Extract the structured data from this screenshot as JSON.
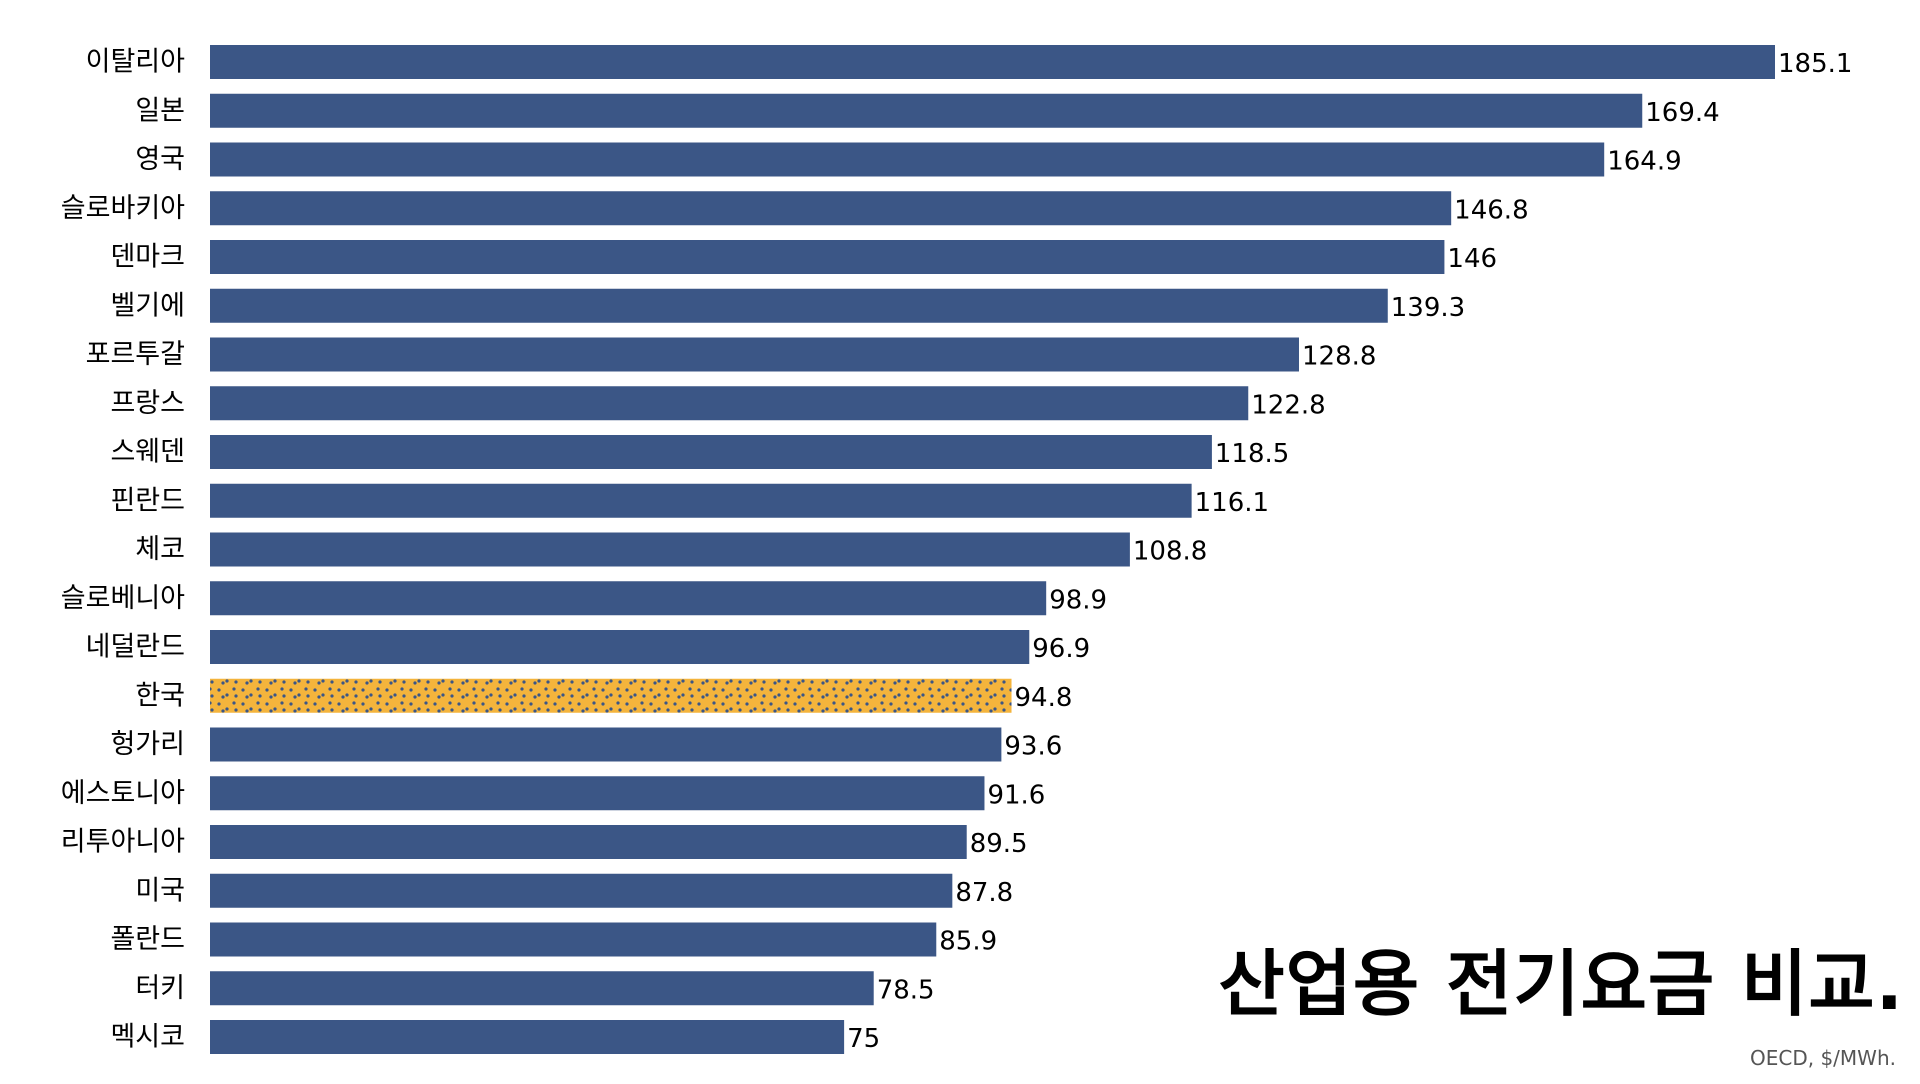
{
  "chart_data": {
    "type": "bar",
    "orientation": "horizontal",
    "title": "산업용 전기요금 비교.",
    "source": "OECD, $/MWh.",
    "categories": [
      "이탈리아",
      "일본",
      "영국",
      "슬로바키아",
      "덴마크",
      "벨기에",
      "포르투갈",
      "프랑스",
      "스웨덴",
      "핀란드",
      "체코",
      "슬로베니아",
      "네덜란드",
      "한국",
      "헝가리",
      "에스토니아",
      "리투아니아",
      "미국",
      "폴란드",
      "터키",
      "멕시코"
    ],
    "values": [
      185.1,
      169.4,
      164.9,
      146.8,
      146,
      139.3,
      128.8,
      122.8,
      118.5,
      116.1,
      108.8,
      98.9,
      96.9,
      94.8,
      93.6,
      91.6,
      89.5,
      87.8,
      85.9,
      78.5,
      75
    ],
    "highlight_category": "한국",
    "xlim": [
      0,
      185.1
    ],
    "grid": false,
    "legend": "none",
    "colors": {
      "bar": "#3b5686",
      "highlight": "#f4b43c",
      "text": "#000000"
    }
  }
}
